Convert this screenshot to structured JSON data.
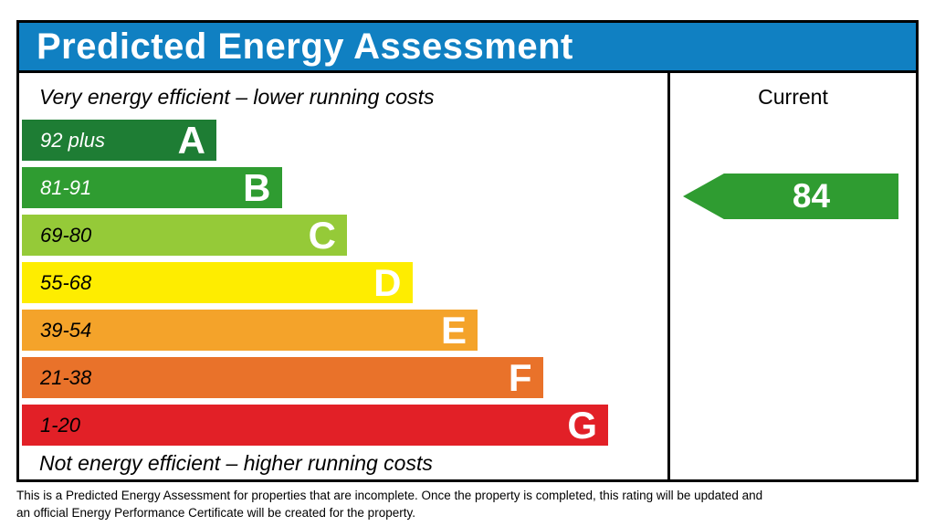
{
  "header": {
    "title": "Predicted Energy Assessment",
    "bg_color": "#1080c2",
    "text_color": "#ffffff"
  },
  "columns": {
    "current_label": "Current"
  },
  "scale": {
    "top_note": "Very energy efficient – lower running costs",
    "bottom_note": "Not energy efficient – higher running costs",
    "bands": [
      {
        "letter": "A",
        "range": "92 plus",
        "color": "#1e7d34",
        "range_text_color": "#ffffff"
      },
      {
        "letter": "B",
        "range": "81-91",
        "color": "#2f9c31",
        "range_text_color": "#ffffff"
      },
      {
        "letter": "C",
        "range": "69-80",
        "color": "#95ca38",
        "range_text_color": "#000000"
      },
      {
        "letter": "D",
        "range": "55-68",
        "color": "#feed00",
        "range_text_color": "#000000"
      },
      {
        "letter": "E",
        "range": "39-54",
        "color": "#f4a32a",
        "range_text_color": "#000000"
      },
      {
        "letter": "F",
        "range": "21-38",
        "color": "#e9722a",
        "range_text_color": "#000000"
      },
      {
        "letter": "G",
        "range": "1-20",
        "color": "#e22027",
        "range_text_color": "#000000"
      }
    ]
  },
  "current": {
    "value": "84",
    "band": "B",
    "arrow_color": "#2f9c31",
    "text_color": "#ffffff"
  },
  "footnote": "This is a Predicted Energy Assessment for properties that are incomplete. Once the property is completed, this rating will be updated and an official Energy Performance Certificate will be created for the property.",
  "chart_data": {
    "type": "bar",
    "title": "Predicted Energy Assessment",
    "categories": [
      "A",
      "B",
      "C",
      "D",
      "E",
      "F",
      "G"
    ],
    "band_ranges": [
      "92 plus",
      "81-91",
      "69-80",
      "55-68",
      "39-54",
      "21-38",
      "1-20"
    ],
    "band_colors": [
      "#1e7d34",
      "#2f9c31",
      "#95ca38",
      "#feed00",
      "#f4a32a",
      "#e9722a",
      "#e22027"
    ],
    "current_rating": 84,
    "current_band": "B",
    "columns_shown": [
      "Current"
    ],
    "annotations": [
      "Very energy efficient – lower running costs",
      "Not energy efficient – higher running costs"
    ],
    "legend_position": "none",
    "grid": false
  }
}
